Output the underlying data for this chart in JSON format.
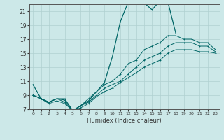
{
  "xlabel": "Humidex (Indice chaleur)",
  "bg_color": "#cce8e8",
  "grid_color": "#b0d0d0",
  "line_color": "#006666",
  "xlim": [
    -0.5,
    23.5
  ],
  "ylim": [
    7,
    22
  ],
  "yticks": [
    7,
    9,
    11,
    13,
    15,
    17,
    19,
    21
  ],
  "xticks": [
    0,
    1,
    2,
    3,
    4,
    5,
    6,
    7,
    8,
    9,
    10,
    11,
    12,
    13,
    14,
    15,
    16,
    17,
    18,
    19,
    20,
    21,
    22,
    23
  ],
  "series": [
    {
      "x": [
        0,
        1,
        2,
        3,
        4,
        5,
        6,
        7,
        8,
        9,
        10,
        11,
        12,
        13,
        14,
        15,
        16,
        17,
        18
      ],
      "y": [
        10.5,
        8.5,
        8.0,
        8.5,
        8.3,
        6.8,
        7.5,
        8.2,
        9.5,
        10.8,
        14.5,
        19.5,
        22.3,
        22.5,
        22.2,
        21.2,
        22.5,
        22.3,
        17.8
      ]
    },
    {
      "x": [
        0,
        1,
        2,
        3,
        4,
        5,
        6,
        7,
        8,
        9,
        10,
        11,
        12,
        13,
        14,
        15,
        16,
        17,
        18,
        19,
        20,
        21,
        22,
        23
      ],
      "y": [
        9.0,
        8.5,
        8.0,
        8.5,
        8.5,
        6.8,
        7.5,
        8.5,
        9.5,
        10.5,
        11.0,
        12.0,
        13.5,
        14.0,
        15.5,
        16.0,
        16.5,
        17.5,
        17.5,
        17.0,
        17.0,
        16.5,
        16.5,
        15.5
      ]
    },
    {
      "x": [
        0,
        1,
        2,
        3,
        4,
        5,
        6,
        7,
        8,
        9,
        10,
        11,
        12,
        13,
        14,
        15,
        16,
        17,
        18,
        19,
        20,
        21,
        22,
        23
      ],
      "y": [
        9.0,
        8.5,
        8.0,
        8.5,
        8.0,
        6.8,
        7.5,
        8.0,
        9.0,
        10.0,
        10.5,
        11.0,
        12.0,
        13.0,
        14.0,
        14.5,
        15.0,
        16.0,
        16.5,
        16.5,
        16.5,
        16.0,
        16.0,
        15.2
      ]
    },
    {
      "x": [
        0,
        1,
        2,
        3,
        4,
        5,
        6,
        7,
        8,
        9,
        10,
        11,
        12,
        13,
        14,
        15,
        16,
        17,
        18,
        19,
        20,
        21,
        22,
        23
      ],
      "y": [
        9.0,
        8.5,
        7.8,
        8.2,
        7.8,
        6.8,
        7.2,
        7.8,
        8.8,
        9.5,
        10.0,
        10.8,
        11.5,
        12.2,
        13.0,
        13.5,
        14.0,
        15.0,
        15.5,
        15.5,
        15.5,
        15.2,
        15.2,
        15.0
      ]
    }
  ]
}
